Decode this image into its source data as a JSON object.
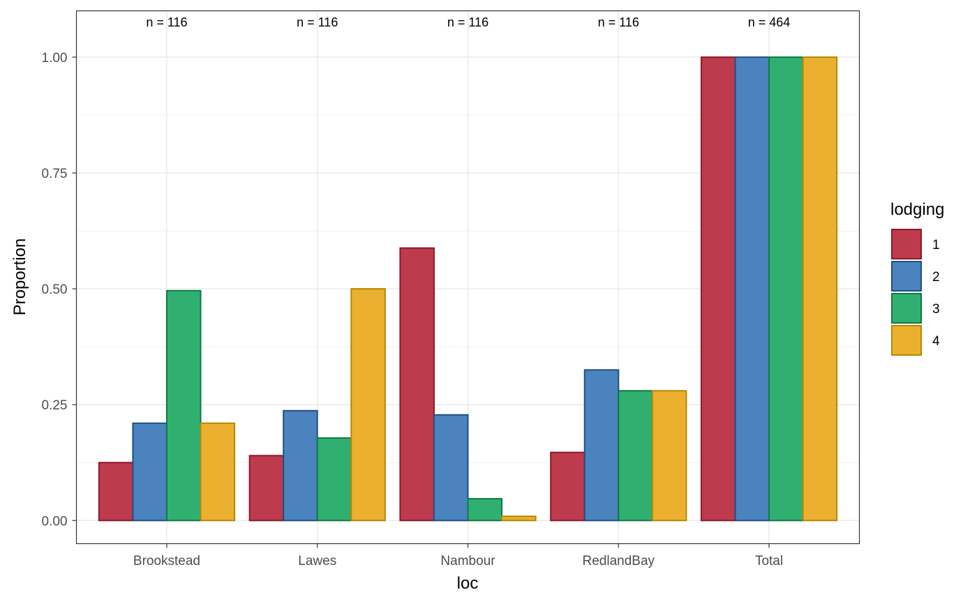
{
  "chart_data": {
    "type": "bar",
    "xlabel": "loc",
    "ylabel": "Proportion",
    "categories": [
      "Brookstead",
      "Lawes",
      "Nambour",
      "RedlandBay",
      "Total"
    ],
    "n_labels": [
      "n = 116",
      "n = 116",
      "n = 116",
      "n = 116",
      "n = 464"
    ],
    "ylim": [
      -0.05,
      1.1
    ],
    "yticks": [
      0,
      0.25,
      0.5,
      0.75,
      1.0
    ],
    "ytick_labels": [
      "0.00",
      "0.25",
      "0.50",
      "0.75",
      "1.00"
    ],
    "grid": true,
    "legend": {
      "title": "lodging",
      "position": "right"
    },
    "series": [
      {
        "name": "1",
        "color": "#BE3A4D",
        "edge": "#8B1A2A",
        "values": [
          0.125,
          0.14,
          0.588,
          0.147,
          1.0
        ]
      },
      {
        "name": "2",
        "color": "#4A83BD",
        "edge": "#1F4E86",
        "values": [
          0.21,
          0.237,
          0.228,
          0.325,
          1.0
        ]
      },
      {
        "name": "3",
        "color": "#30B070",
        "edge": "#0E7A44",
        "values": [
          0.496,
          0.178,
          0.047,
          0.28,
          1.0
        ]
      },
      {
        "name": "4",
        "color": "#ECB030",
        "edge": "#B88600",
        "values": [
          0.21,
          0.5,
          0.009,
          0.28,
          1.0
        ]
      }
    ]
  }
}
